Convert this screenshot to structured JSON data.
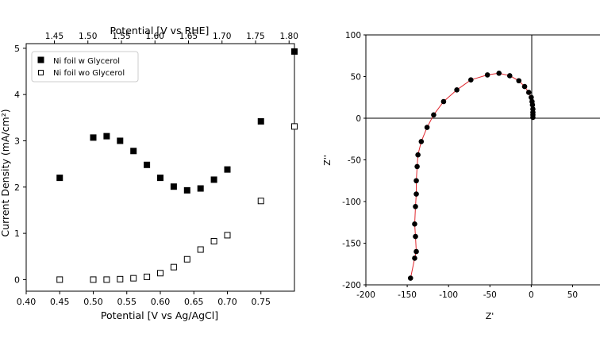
{
  "chart_data": [
    {
      "type": "scatter",
      "xlabel": "Potential [V vs Ag/AgCl]",
      "ylabel": "Current Density (mA/cm²)",
      "top_xlabel": "Potential [V vs RHE]",
      "xlim": [
        0.4,
        0.8
      ],
      "ylim": [
        -0.25,
        5.1
      ],
      "xticks": [
        0.4,
        0.45,
        0.5,
        0.55,
        0.6,
        0.65,
        0.7,
        0.75
      ],
      "xtick_labels": [
        "0.40",
        "0.45",
        "0.50",
        "0.55",
        "0.60",
        "0.65",
        "0.70",
        "0.75"
      ],
      "yticks": [
        0,
        1,
        2,
        3,
        4,
        5
      ],
      "ytick_labels": [
        "0",
        "1",
        "2",
        "3",
        "4",
        "5"
      ],
      "top_xticks_rhe": [
        1.45,
        1.5,
        1.55,
        1.6,
        1.65,
        1.7,
        1.75,
        1.8
      ],
      "top_xtick_labels": [
        "1.45",
        "1.50",
        "1.55",
        "1.60",
        "1.65",
        "1.70",
        "1.75",
        "1.80"
      ],
      "rhe_offset": 1.008,
      "legend_position": "top-left",
      "grid": false,
      "series": [
        {
          "name": "Ni foil w Glycerol",
          "marker": "filled-square",
          "color": "#000000",
          "x": [
            0.45,
            0.5,
            0.52,
            0.54,
            0.56,
            0.58,
            0.6,
            0.62,
            0.64,
            0.66,
            0.68,
            0.7,
            0.75,
            0.8
          ],
          "y": [
            2.2,
            3.07,
            3.1,
            3.0,
            2.78,
            2.48,
            2.2,
            2.01,
            1.93,
            1.97,
            2.16,
            2.38,
            3.42,
            4.93
          ]
        },
        {
          "name": "Ni foil wo Glycerol",
          "marker": "open-square",
          "color": "#000000",
          "x": [
            0.45,
            0.5,
            0.52,
            0.54,
            0.56,
            0.58,
            0.6,
            0.62,
            0.64,
            0.66,
            0.68,
            0.7,
            0.75,
            0.8
          ],
          "y": [
            0.0,
            0.0,
            0.0,
            0.01,
            0.03,
            0.06,
            0.14,
            0.27,
            0.44,
            0.65,
            0.83,
            0.96,
            1.7,
            3.31
          ]
        }
      ]
    },
    {
      "type": "line",
      "subtype": "nyquist",
      "xlabel": "Z'",
      "ylabel": "Z''",
      "xlim": [
        -200,
        80
      ],
      "ylim": [
        -200,
        100
      ],
      "xticks": [
        -200,
        -150,
        -100,
        -50,
        0,
        50
      ],
      "xtick_labels": [
        "-200",
        "-150",
        "-100",
        "-50",
        "0",
        "50"
      ],
      "yticks": [
        -200,
        -150,
        -100,
        -50,
        0,
        50,
        100
      ],
      "ytick_labels": [
        "-200",
        "-150",
        "-100",
        "-50",
        "0",
        "50",
        "100"
      ],
      "zero_lines": true,
      "line_color": "#e0282f",
      "marker_color": "#000000",
      "x": [
        -146,
        -141,
        -139,
        -140,
        -141,
        -140,
        -139,
        -139,
        -138,
        -137,
        -133,
        -126,
        -118,
        -106,
        -90,
        -73,
        -53,
        -39,
        -26,
        -15,
        -8,
        -3,
        0,
        1,
        1.5,
        2,
        2,
        2,
        2
      ],
      "y": [
        -192,
        -168,
        -160,
        -142,
        -127,
        -106,
        -91,
        -75,
        -58,
        -44,
        -28,
        -11,
        4,
        20,
        34,
        46,
        52,
        54,
        51,
        45,
        38,
        31,
        25,
        20,
        16,
        11,
        7,
        4,
        1
      ]
    }
  ]
}
